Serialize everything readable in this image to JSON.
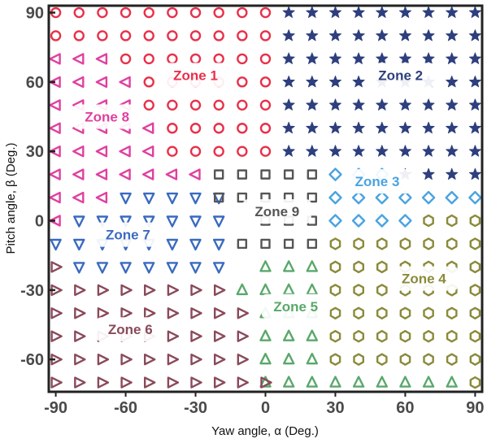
{
  "chart_data": {
    "type": "scatter",
    "xlabel": "Yaw angle, α (Deg.)",
    "ylabel": "Pitch angle, β (Deg.)",
    "xlim": [
      -93,
      93
    ],
    "ylim": [
      -74,
      93
    ],
    "x_ticks": [
      -90,
      -60,
      -30,
      0,
      30,
      60,
      90
    ],
    "y_ticks": [
      90,
      60,
      30,
      0,
      -30,
      -60
    ],
    "x_tick_labels": [
      "-90",
      "-60",
      "-30",
      "0",
      "30",
      "60",
      "90"
    ],
    "y_tick_labels": [
      "90",
      "60",
      "30",
      "0",
      "-30",
      "-60"
    ],
    "grid": false,
    "legend": "none",
    "grid_x": [
      -90,
      -80,
      -70,
      -60,
      -50,
      -40,
      -30,
      -20,
      -10,
      0,
      10,
      20,
      30,
      40,
      50,
      60,
      70,
      80,
      90
    ],
    "grid_y": [
      90,
      80,
      70,
      60,
      50,
      40,
      30,
      20,
      10,
      0,
      -10,
      -20,
      -30,
      -40,
      -50,
      -60,
      -70
    ],
    "zones": [
      {
        "label": "Zone 1",
        "marker": "circle",
        "color": "#e8304a",
        "label_at": [
          -30,
          63
        ],
        "rows": [
          [
            90,
            -90,
            0
          ],
          [
            80,
            -90,
            0
          ],
          [
            70,
            -60,
            0
          ],
          [
            60,
            -50,
            0
          ],
          [
            50,
            -50,
            0
          ],
          [
            40,
            -40,
            0
          ],
          [
            30,
            -40,
            0
          ]
        ]
      },
      {
        "label": "Zone 2",
        "marker": "star",
        "color": "#2e3f7e",
        "label_at": [
          58,
          63
        ],
        "rows": [
          [
            90,
            10,
            90
          ],
          [
            80,
            10,
            90
          ],
          [
            70,
            10,
            90
          ],
          [
            60,
            10,
            90
          ],
          [
            50,
            10,
            90
          ],
          [
            40,
            10,
            90
          ],
          [
            30,
            10,
            90
          ],
          [
            20,
            60,
            90
          ]
        ]
      },
      {
        "label": "Zone 3",
        "marker": "diamond",
        "color": "#4aa3e0",
        "label_at": [
          48,
          17
        ],
        "rows": [
          [
            20,
            30,
            50
          ],
          [
            10,
            30,
            90
          ],
          [
            0,
            30,
            60
          ]
        ]
      },
      {
        "label": "Zone 4",
        "marker": "hexagon",
        "color": "#8a8a3a",
        "label_at": [
          68,
          -25
        ],
        "rows": [
          [
            0,
            70,
            90
          ],
          [
            -10,
            30,
            90
          ],
          [
            -20,
            30,
            90
          ],
          [
            -30,
            30,
            90
          ],
          [
            -40,
            30,
            90
          ],
          [
            -50,
            30,
            90
          ],
          [
            -60,
            30,
            90
          ],
          [
            -70,
            90,
            90
          ]
        ]
      },
      {
        "label": "Zone 5",
        "marker": "triangle-up",
        "color": "#5aa86a",
        "label_at": [
          13,
          -37
        ],
        "rows": [
          [
            -20,
            0,
            20
          ],
          [
            -30,
            -10,
            20
          ],
          [
            -40,
            0,
            20
          ],
          [
            -50,
            0,
            20
          ],
          [
            -60,
            0,
            20
          ],
          [
            -70,
            0,
            80
          ]
        ]
      },
      {
        "label": "Zone 6",
        "marker": "triangle-right",
        "color": "#8a4a5a",
        "label_at": [
          -58,
          -47
        ],
        "rows": [
          [
            -20,
            -90,
            -90
          ],
          [
            -30,
            -90,
            -20
          ],
          [
            -40,
            -90,
            -10
          ],
          [
            -50,
            -90,
            -10
          ],
          [
            -60,
            -90,
            -10
          ],
          [
            -70,
            -90,
            0
          ]
        ]
      },
      {
        "label": "Zone 7",
        "marker": "triangle-down",
        "color": "#3a6ac0",
        "label_at": [
          -59,
          -6
        ],
        "rows": [
          [
            10,
            -60,
            -20
          ],
          [
            0,
            -80,
            -20
          ],
          [
            -10,
            -90,
            -20
          ],
          [
            -20,
            -80,
            -20
          ]
        ]
      },
      {
        "label": "Zone 8",
        "marker": "triangle-left",
        "color": "#e040a0",
        "label_at": [
          -68,
          45
        ],
        "rows": [
          [
            70,
            -90,
            -70
          ],
          [
            60,
            -90,
            -60
          ],
          [
            50,
            -90,
            -60
          ],
          [
            40,
            -90,
            -50
          ],
          [
            30,
            -90,
            -50
          ],
          [
            20,
            -90,
            -30
          ],
          [
            10,
            -90,
            -70
          ],
          [
            0,
            -90,
            -90
          ]
        ]
      },
      {
        "label": "Zone 9",
        "marker": "square",
        "color": "#555555",
        "label_at": [
          5,
          4
        ],
        "rows": [
          [
            20,
            -20,
            20
          ],
          [
            10,
            -20,
            20
          ],
          [
            0,
            0,
            20
          ],
          [
            -10,
            -10,
            20
          ]
        ]
      }
    ]
  }
}
